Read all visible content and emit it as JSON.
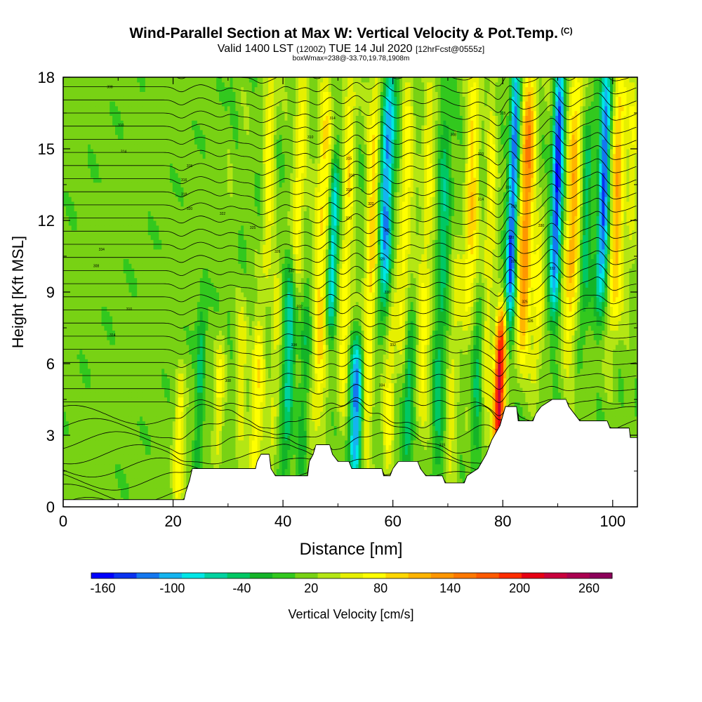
{
  "title": {
    "main": "Wind-Parallel Section at Max W: Vertical Velocity & Pot.Temp.",
    "copyright": "(C)",
    "valid_a": "Valid 1400 LST",
    "valid_b": "(1200Z)",
    "valid_c": "TUE 14 Jul 2020",
    "valid_d": "[12hrFcst@0555z]",
    "box_info": "boxWmax=238@-33.70,19.78,1908m"
  },
  "chart_data": {
    "type": "heatmap",
    "title": "Wind-Parallel Section at Max W: Vertical Velocity & Pot.Temp.",
    "xlabel": "Distance [nm]",
    "ylabel": "Height [Kft MSL]",
    "xlim": [
      0,
      104.5
    ],
    "ylim": [
      0,
      18
    ],
    "x_ticks": [
      0,
      20,
      40,
      60,
      80,
      100
    ],
    "y_ticks": [
      0,
      3,
      6,
      9,
      12,
      15,
      18
    ],
    "colorbar": {
      "label": "Vertical Velocity [cm/s]",
      "min": -170,
      "max": 280,
      "step": 20,
      "tick_labels": [
        "-160",
        "-100",
        "-40",
        "20",
        "80",
        "140",
        "200",
        "260"
      ],
      "tick_values": [
        -160,
        -100,
        -40,
        20,
        80,
        140,
        200,
        260
      ],
      "colors": [
        "#0000ff",
        "#0a32f0",
        "#1478f0",
        "#14b4f0",
        "#00e6e6",
        "#00d2a0",
        "#00c864",
        "#14b428",
        "#32c81e",
        "#78d214",
        "#b4e614",
        "#e6f000",
        "#ffff00",
        "#ffd700",
        "#ffb400",
        "#ff9600",
        "#ff7800",
        "#ff5a00",
        "#ff2d00",
        "#e60014",
        "#c8003c",
        "#aa0050",
        "#8c005a"
      ]
    },
    "vertical_velocity_features": [
      {
        "x": 21.5,
        "z0": 0.5,
        "z1": 5,
        "w": 85,
        "halfwidth": 0.9
      },
      {
        "x": 25,
        "z0": 2,
        "z1": 8,
        "w": -35,
        "halfwidth": 0.8
      },
      {
        "x": 28.5,
        "z0": 2.5,
        "z1": 6.5,
        "w": 70,
        "halfwidth": 0.9
      },
      {
        "x": 32.5,
        "z0": 1.5,
        "z1": 8.5,
        "w": 55,
        "halfwidth": 1.0
      },
      {
        "x": 35.5,
        "z0": 1,
        "z1": 7,
        "w": 90,
        "halfwidth": 1.2
      },
      {
        "x": 38.5,
        "z0": 2.5,
        "z1": 9.5,
        "w": 60,
        "halfwidth": 0.9
      },
      {
        "x": 36.5,
        "z0": 10,
        "z1": 18,
        "w": 80,
        "halfwidth": 1.0
      },
      {
        "x": 41,
        "z0": 2,
        "z1": 10,
        "w": -60,
        "halfwidth": 1.0
      },
      {
        "x": 42,
        "z0": 10,
        "z1": 18,
        "w": 85,
        "halfwidth": 1.1
      },
      {
        "x": 44,
        "z0": 2,
        "z1": 8,
        "w": -30,
        "halfwidth": 0.9
      },
      {
        "x": 46.5,
        "z0": 3.5,
        "z1": 18,
        "w": 95,
        "halfwidth": 1.3
      },
      {
        "x": 48.5,
        "z0": 8,
        "z1": 14,
        "w": -90,
        "halfwidth": 0.9
      },
      {
        "x": 51,
        "z0": 4,
        "z1": 18,
        "w": 85,
        "halfwidth": 1.1
      },
      {
        "x": 53.5,
        "z0": 1.5,
        "z1": 6.5,
        "w": -110,
        "halfwidth": 1.2
      },
      {
        "x": 55.5,
        "z0": 3,
        "z1": 18,
        "w": 100,
        "halfwidth": 1.1
      },
      {
        "x": 58,
        "z0": 9,
        "z1": 18,
        "w": -115,
        "halfwidth": 1.2
      },
      {
        "x": 59.5,
        "z0": 1.5,
        "z1": 9,
        "w": 70,
        "halfwidth": 1.0
      },
      {
        "x": 61.5,
        "z0": 7,
        "z1": 18,
        "w": 80,
        "halfwidth": 1.2
      },
      {
        "x": 63,
        "z0": 2,
        "z1": 7,
        "w": -50,
        "halfwidth": 1.0
      },
      {
        "x": 65.5,
        "z0": 2.5,
        "z1": 18,
        "w": 70,
        "halfwidth": 1.3
      },
      {
        "x": 68.5,
        "z0": 1.5,
        "z1": 18,
        "w": -40,
        "halfwidth": 1.2
      },
      {
        "x": 71,
        "z0": 2,
        "z1": 10,
        "w": 60,
        "halfwidth": 1.1
      },
      {
        "x": 73.5,
        "z0": 8,
        "z1": 18,
        "w": 100,
        "halfwidth": 1.2
      },
      {
        "x": 75.5,
        "z0": 2,
        "z1": 8,
        "w": -30,
        "halfwidth": 1.0
      },
      {
        "x": 77,
        "z0": 4,
        "z1": 18,
        "w": 70,
        "halfwidth": 1.0
      },
      {
        "x": 79.5,
        "z0": 2.5,
        "z1": 7.5,
        "w": 238,
        "halfwidth": 1.0
      },
      {
        "x": 81,
        "z0": 8,
        "z1": 18,
        "w": -140,
        "halfwidth": 0.9
      },
      {
        "x": 83.5,
        "z0": 7,
        "z1": 18,
        "w": 150,
        "halfwidth": 1.3
      },
      {
        "x": 86,
        "z0": 5,
        "z1": 12,
        "w": 70,
        "halfwidth": 1.0
      },
      {
        "x": 89,
        "z0": 9,
        "z1": 18,
        "w": -150,
        "halfwidth": 1.0
      },
      {
        "x": 92,
        "z0": 7,
        "z1": 18,
        "w": 120,
        "halfwidth": 1.3
      },
      {
        "x": 94.5,
        "z0": 8,
        "z1": 16,
        "w": -40,
        "halfwidth": 1.0
      },
      {
        "x": 97.5,
        "z0": 9,
        "z1": 18,
        "w": -130,
        "halfwidth": 1.0
      },
      {
        "x": 100,
        "z0": 8,
        "z1": 18,
        "w": 120,
        "halfwidth": 1.2
      },
      {
        "x": 102.5,
        "z0": 10,
        "z1": 18,
        "w": 60,
        "halfwidth": 1.0
      }
    ],
    "terrain_height_kft": [
      [
        0,
        0.3
      ],
      [
        21,
        0.3
      ],
      [
        22,
        0.3
      ],
      [
        22.3,
        0.6
      ],
      [
        23,
        1.1
      ],
      [
        23.5,
        1.6
      ],
      [
        35,
        1.6
      ],
      [
        35.3,
        1.9
      ],
      [
        36,
        2.2
      ],
      [
        37.5,
        2.2
      ],
      [
        37.8,
        1.6
      ],
      [
        38.6,
        1.3
      ],
      [
        44.5,
        1.3
      ],
      [
        44.8,
        1.9
      ],
      [
        45.5,
        2.2
      ],
      [
        46,
        2.6
      ],
      [
        48.5,
        2.6
      ],
      [
        49,
        2.2
      ],
      [
        50,
        1.9
      ],
      [
        52,
        1.9
      ],
      [
        52.5,
        1.6
      ],
      [
        58,
        1.6
      ],
      [
        58.3,
        1.3
      ],
      [
        59.5,
        1.3
      ],
      [
        60,
        1.6
      ],
      [
        61,
        1.9
      ],
      [
        64.5,
        1.9
      ],
      [
        65,
        1.6
      ],
      [
        66,
        1.3
      ],
      [
        69,
        1.3
      ],
      [
        69.5,
        1.0
      ],
      [
        73,
        1.0
      ],
      [
        73.5,
        1.3
      ],
      [
        75.5,
        1.6
      ],
      [
        77,
        2.2
      ],
      [
        78,
        2.8
      ],
      [
        79.5,
        3.4
      ],
      [
        80.5,
        4.2
      ],
      [
        82.5,
        4.2
      ],
      [
        82.8,
        3.6
      ],
      [
        85.5,
        3.6
      ],
      [
        86,
        3.9
      ],
      [
        87,
        4.2
      ],
      [
        89,
        4.5
      ],
      [
        91.5,
        4.5
      ],
      [
        92,
        4.2
      ],
      [
        93,
        3.9
      ],
      [
        94,
        3.6
      ],
      [
        99,
        3.6
      ],
      [
        99.5,
        3.3
      ],
      [
        103,
        3.3
      ],
      [
        103.2,
        2.9
      ],
      [
        104.5,
        2.9
      ]
    ],
    "theta_contours": {
      "unit": "K",
      "min": 302,
      "max": 335,
      "interval": 1,
      "label_samples": [
        "308",
        "310",
        "314",
        "315",
        "316",
        "318",
        "320",
        "322",
        "325",
        "326",
        "330",
        "332",
        "334"
      ]
    },
    "w_max": {
      "value": 238,
      "unit": "cm/s",
      "lat": -33.7,
      "lon": 19.78,
      "height_m": 1908
    }
  }
}
